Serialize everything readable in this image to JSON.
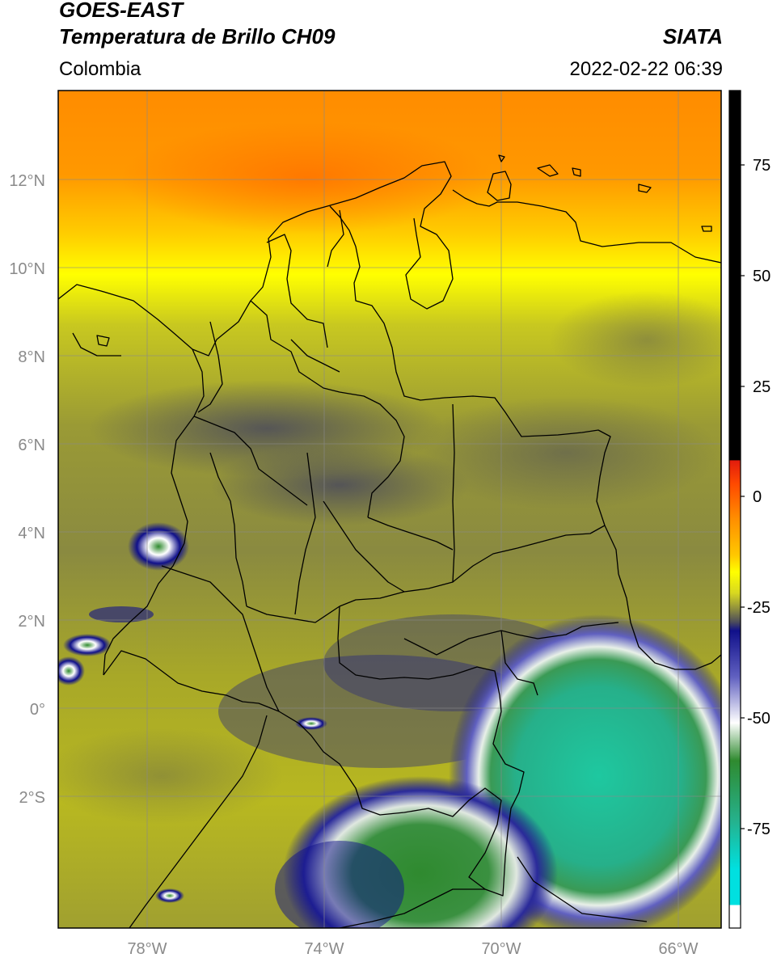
{
  "header": {
    "satellite": "GOES-EAST",
    "product": "Temperatura de Brillo CH09",
    "region": "Colombia",
    "source": "SIATA",
    "datetime": "2022-02-22 06:39"
  },
  "map": {
    "lat_labels": [
      "12°N",
      "10°N",
      "8°N",
      "6°N",
      "4°N",
      "2°N",
      "0°",
      "2°S"
    ],
    "lon_labels": [
      "78°W",
      "74°W",
      "70°W",
      "66°W"
    ]
  },
  "colorbar": {
    "tick_labels": [
      "75",
      "50",
      "25",
      "0",
      "-25",
      "-50",
      "-75"
    ],
    "colors": {
      "black": "#000000",
      "red": "#e21c0d",
      "orange": "#ff8c00",
      "yellow": "#ffff00",
      "olive": "#b8b820",
      "slate": "#4a4a5c",
      "navy": "#10108a",
      "white": "#ffffff",
      "green": "#2f8a2f",
      "teal": "#1fc7a8",
      "cyan": "#00e0e0"
    }
  }
}
